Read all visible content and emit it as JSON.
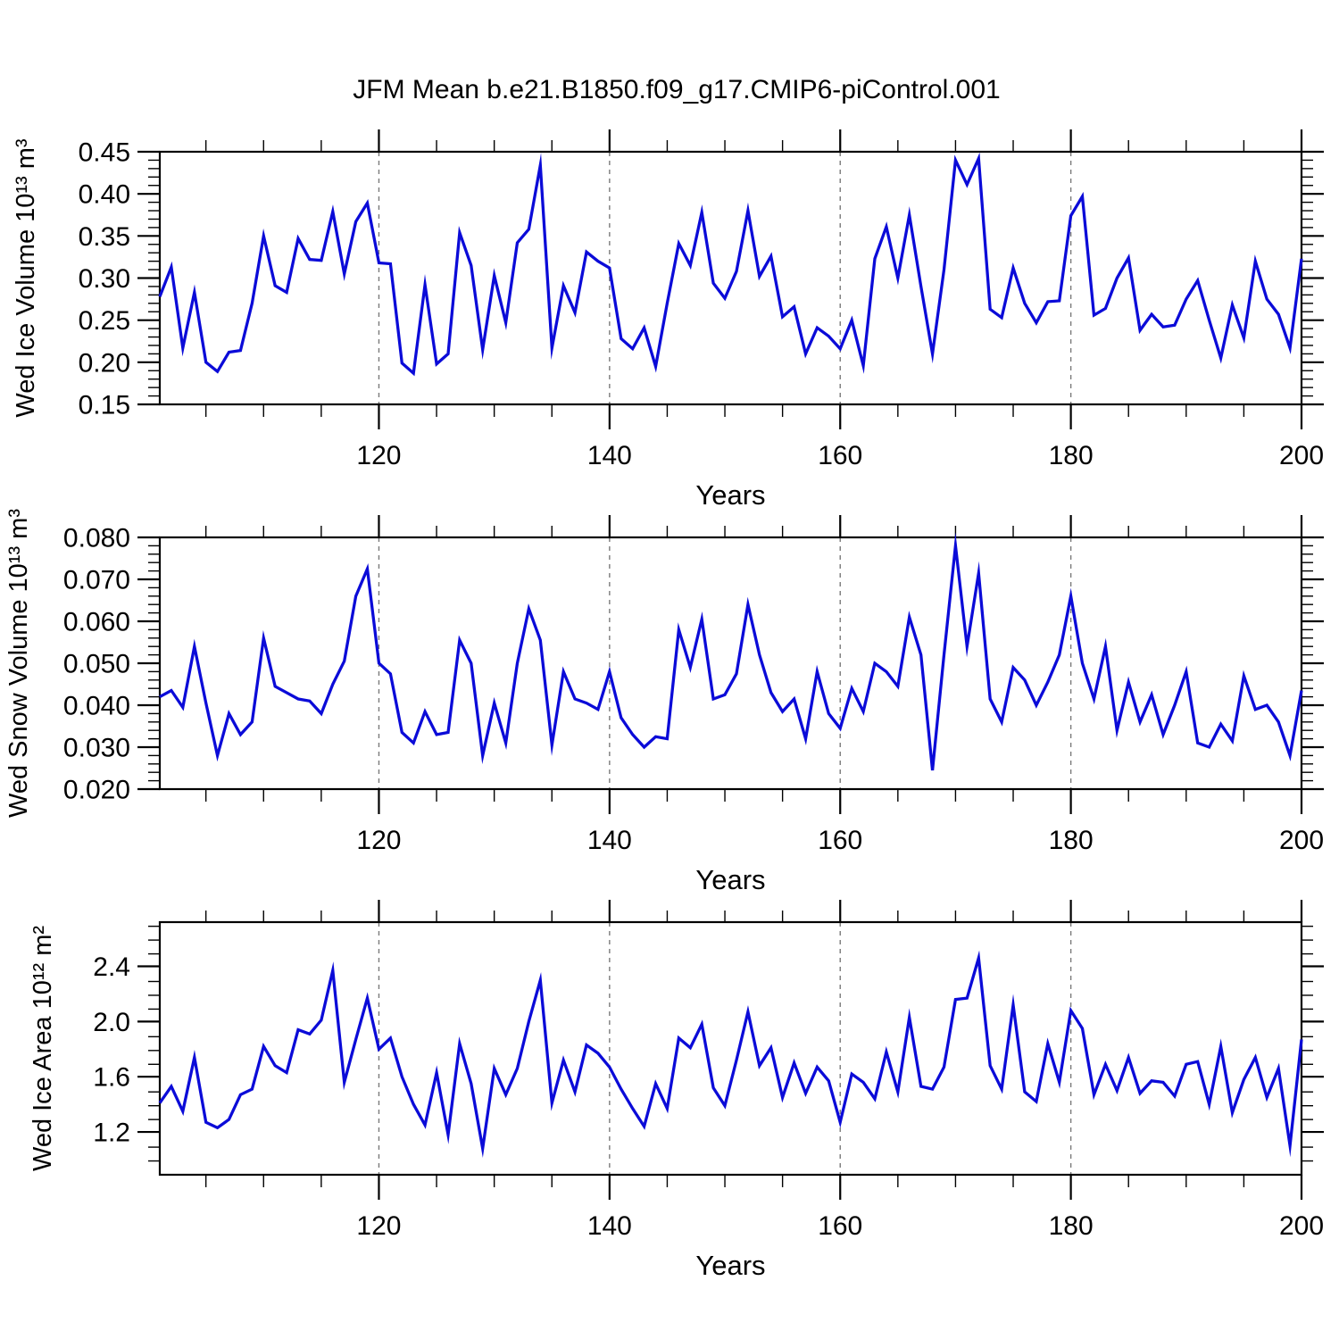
{
  "title": "JFM Mean b.e21.B1850.f09_g17.CMIP6-piControl.001",
  "chart_data": {
    "type": "line",
    "title": "JFM Mean b.e21.B1850.f09_g17.CMIP6-piControl.001",
    "xlabel": "Years",
    "x_start": 101,
    "x_end": 200,
    "x_major_tick_values": [
      120,
      140,
      160,
      180,
      200
    ],
    "x_major_tick_labels": [
      "120",
      "140",
      "160",
      "180",
      "200"
    ],
    "x_minor_tick_step": 5,
    "x_gridline_values": [
      120,
      140,
      160,
      180
    ],
    "grid_style": "dashed-vertical",
    "legend": "none",
    "line_color": "#0b0bd8",
    "axis_color": "#000000",
    "grid_color": "#7a7a7a",
    "years": [
      101,
      102,
      103,
      104,
      105,
      106,
      107,
      108,
      109,
      110,
      111,
      112,
      113,
      114,
      115,
      116,
      117,
      118,
      119,
      120,
      121,
      122,
      123,
      124,
      125,
      126,
      127,
      128,
      129,
      130,
      131,
      132,
      133,
      134,
      135,
      136,
      137,
      138,
      139,
      140,
      141,
      142,
      143,
      144,
      145,
      146,
      147,
      148,
      149,
      150,
      151,
      152,
      153,
      154,
      155,
      156,
      157,
      158,
      159,
      160,
      161,
      162,
      163,
      164,
      165,
      166,
      167,
      168,
      169,
      170,
      171,
      172,
      173,
      174,
      175,
      176,
      177,
      178,
      179,
      180,
      181,
      182,
      183,
      184,
      185,
      186,
      187,
      188,
      189,
      190,
      191,
      192,
      193,
      194,
      195,
      196,
      197,
      198,
      199,
      200
    ],
    "panels": [
      {
        "name": "ice-volume",
        "ylabel": "Wed Ice Volume 10¹³ m³",
        "ylim": [
          0.15,
          0.45
        ],
        "ytick_values": [
          0.15,
          0.2,
          0.25,
          0.3,
          0.35,
          0.4,
          0.45
        ],
        "ytick_labels": [
          "0.15",
          "0.20",
          "0.25",
          "0.30",
          "0.35",
          "0.40",
          "0.45"
        ],
        "y_minor_step": 0.01,
        "values": [
          0.278,
          0.313,
          0.217,
          0.283,
          0.2,
          0.189,
          0.212,
          0.214,
          0.27,
          0.35,
          0.291,
          0.283,
          0.347,
          0.322,
          0.321,
          0.379,
          0.305,
          0.367,
          0.389,
          0.318,
          0.317,
          0.199,
          0.187,
          0.292,
          0.198,
          0.21,
          0.354,
          0.315,
          0.215,
          0.303,
          0.247,
          0.342,
          0.358,
          0.434,
          0.217,
          0.291,
          0.259,
          0.331,
          0.32,
          0.312,
          0.228,
          0.216,
          0.241,
          0.195,
          0.27,
          0.341,
          0.315,
          0.378,
          0.294,
          0.276,
          0.308,
          0.38,
          0.302,
          0.326,
          0.254,
          0.266,
          0.21,
          0.241,
          0.231,
          0.216,
          0.25,
          0.196,
          0.323,
          0.361,
          0.3,
          0.375,
          0.29,
          0.21,
          0.31,
          0.44,
          0.411,
          0.442,
          0.263,
          0.253,
          0.312,
          0.27,
          0.247,
          0.272,
          0.273,
          0.374,
          0.397,
          0.256,
          0.264,
          0.3,
          0.324,
          0.238,
          0.257,
          0.242,
          0.244,
          0.275,
          0.297,
          0.25,
          0.205,
          0.268,
          0.229,
          0.32,
          0.275,
          0.257,
          0.217,
          0.323
        ]
      },
      {
        "name": "snow-volume",
        "ylabel": "Wed Snow Volume 10¹³ m³",
        "ylim": [
          0.02,
          0.08
        ],
        "ytick_values": [
          0.02,
          0.03,
          0.04,
          0.05,
          0.06,
          0.07,
          0.08
        ],
        "ytick_labels": [
          "0.020",
          "0.030",
          "0.040",
          "0.050",
          "0.060",
          "0.070",
          "0.080"
        ],
        "y_minor_step": 0.002,
        "values": [
          0.042,
          0.0435,
          0.0395,
          0.054,
          0.0405,
          0.028,
          0.038,
          0.033,
          0.036,
          0.056,
          0.0445,
          0.043,
          0.0415,
          0.041,
          0.038,
          0.045,
          0.0505,
          0.066,
          0.0725,
          0.05,
          0.0475,
          0.0335,
          0.031,
          0.0385,
          0.033,
          0.0335,
          0.0555,
          0.05,
          0.028,
          0.0405,
          0.031,
          0.05,
          0.063,
          0.0555,
          0.0305,
          0.048,
          0.0415,
          0.0405,
          0.039,
          0.048,
          0.037,
          0.033,
          0.03,
          0.0325,
          0.032,
          0.058,
          0.049,
          0.0605,
          0.0415,
          0.0425,
          0.0475,
          0.064,
          0.052,
          0.043,
          0.0385,
          0.0415,
          0.032,
          0.048,
          0.038,
          0.0345,
          0.044,
          0.0385,
          0.05,
          0.048,
          0.0445,
          0.061,
          0.052,
          0.0245,
          0.052,
          0.078,
          0.054,
          0.0715,
          0.0415,
          0.036,
          0.049,
          0.046,
          0.04,
          0.0455,
          0.052,
          0.066,
          0.05,
          0.0415,
          0.054,
          0.034,
          0.0455,
          0.036,
          0.0425,
          0.033,
          0.04,
          0.048,
          0.031,
          0.03,
          0.0355,
          0.0315,
          0.047,
          0.039,
          0.04,
          0.036,
          0.028,
          0.0435
        ]
      },
      {
        "name": "ice-area",
        "ylabel": "Wed Ice Area 10¹² m²",
        "ylim": [
          0.89,
          2.72
        ],
        "ytick_values": [
          1.2,
          1.6,
          2.0,
          2.4
        ],
        "ytick_labels": [
          "1.2",
          "1.6",
          "2.0",
          "2.4"
        ],
        "y_minor_step": 0.1,
        "values": [
          1.41,
          1.53,
          1.35,
          1.74,
          1.27,
          1.23,
          1.29,
          1.47,
          1.51,
          1.82,
          1.68,
          1.63,
          1.94,
          1.91,
          2.01,
          2.37,
          1.56,
          1.87,
          2.17,
          1.8,
          1.88,
          1.6,
          1.4,
          1.25,
          1.63,
          1.18,
          1.84,
          1.55,
          1.08,
          1.66,
          1.47,
          1.66,
          2.0,
          2.3,
          1.41,
          1.72,
          1.49,
          1.83,
          1.77,
          1.67,
          1.51,
          1.37,
          1.24,
          1.55,
          1.37,
          1.88,
          1.81,
          1.98,
          1.52,
          1.39,
          1.72,
          2.07,
          1.68,
          1.81,
          1.45,
          1.7,
          1.48,
          1.67,
          1.57,
          1.27,
          1.62,
          1.56,
          1.44,
          1.78,
          1.49,
          2.03,
          1.53,
          1.51,
          1.67,
          2.16,
          2.17,
          2.46,
          1.68,
          1.51,
          2.12,
          1.49,
          1.42,
          1.84,
          1.56,
          2.08,
          1.95,
          1.47,
          1.69,
          1.5,
          1.74,
          1.48,
          1.57,
          1.56,
          1.46,
          1.69,
          1.71,
          1.4,
          1.82,
          1.34,
          1.58,
          1.74,
          1.45,
          1.66,
          1.1,
          1.87
        ]
      }
    ]
  }
}
